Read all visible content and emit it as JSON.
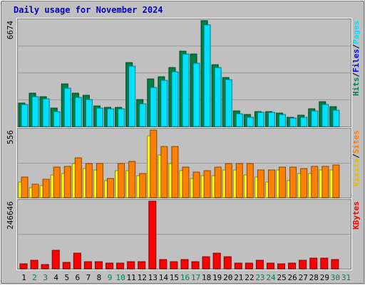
{
  "chart_data": {
    "type": "bar",
    "title": "Daily usage for November 2024",
    "categories": [
      "1",
      "2",
      "3",
      "4",
      "5",
      "6",
      "7",
      "8",
      "9",
      "10",
      "11",
      "12",
      "13",
      "14",
      "15",
      "16",
      "17",
      "18",
      "19",
      "20",
      "21",
      "22",
      "23",
      "24",
      "25",
      "26",
      "27",
      "28",
      "29",
      "30",
      "31"
    ],
    "weekend_days": [
      "2",
      "3",
      "9",
      "10",
      "16",
      "17",
      "23",
      "24",
      "30",
      "31"
    ],
    "panels": [
      {
        "name": "pages-files-hits",
        "max_label": "6674",
        "ymax": 6674,
        "legend": [
          {
            "text": "Hits",
            "color": "#00805c"
          },
          {
            "text": "Files",
            "color": "#0000ff"
          },
          {
            "text": "Pages",
            "color": "#00e0ff"
          }
        ],
        "series": [
          {
            "name": "Hits",
            "color": "#008040",
            "values": [
              1500,
              2100,
              1900,
              1150,
              2700,
              2120,
              1950,
              1300,
              1200,
              1200,
              4050,
              1700,
              3000,
              3150,
              3700,
              4750,
              4550,
              6674,
              3900,
              3100,
              1000,
              750,
              950,
              950,
              850,
              600,
              700,
              1100,
              1550,
              1250,
              0
            ]
          },
          {
            "name": "Files",
            "color": "#00e0ff",
            "values": [
              1400,
              1900,
              1750,
              950,
              2400,
              1850,
              1700,
              1150,
              1100,
              1100,
              3800,
              1450,
              2450,
              2900,
              3450,
              4550,
              4000,
              6400,
              3700,
              2950,
              800,
              600,
              900,
              900,
              750,
              550,
              600,
              1000,
              1400,
              1050,
              0
            ]
          }
        ]
      },
      {
        "name": "visits-sites",
        "max_label": "556",
        "ymax": 556,
        "legend": [
          {
            "text": "Visits",
            "color": "#e0c000"
          },
          {
            "text": "Sites",
            "color": "#ff8000"
          }
        ],
        "series": [
          {
            "name": "Visits",
            "color": "#ffff00",
            "values": [
              130,
              80,
              100,
              190,
              200,
              280,
              240,
              230,
              140,
              220,
              220,
              180,
              510,
              350,
              280,
              220,
              160,
              180,
              180,
              230,
              230,
              190,
              170,
              130,
              230,
              140,
              200,
              200,
              230,
              230,
              0
            ]
          },
          {
            "name": "Sites",
            "color": "#ff8000",
            "values": [
              170,
              110,
              150,
              250,
              260,
              330,
              280,
              280,
              160,
              280,
              300,
              200,
              556,
              420,
              420,
              250,
              210,
              220,
              250,
              280,
              280,
              280,
              230,
              230,
              250,
              250,
              240,
              260,
              260,
              270,
              0
            ]
          }
        ]
      },
      {
        "name": "kbytes",
        "max_label": "246646",
        "ymax": 246646,
        "legend": [
          {
            "text": "KBytes",
            "color": "#ff0000"
          }
        ],
        "series": [
          {
            "name": "KBytes",
            "color": "#ff0000",
            "values": [
              17000,
              31000,
              16000,
              68000,
              23000,
              58000,
              27000,
              27000,
              21000,
              21000,
              27000,
              27000,
              246646,
              34000,
              27000,
              34000,
              27000,
              45000,
              57000,
              43000,
              21000,
              21000,
              31000,
              21000,
              17000,
              20000,
              31000,
              38000,
              40000,
              33000,
              0
            ]
          }
        ]
      }
    ]
  }
}
